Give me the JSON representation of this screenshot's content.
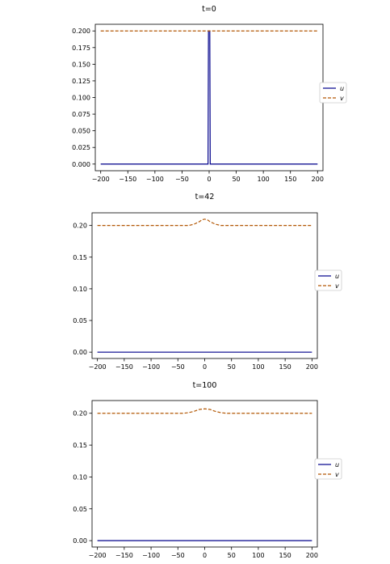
{
  "chart_data": [
    {
      "type": "line",
      "title": "t=0",
      "xlabel": "",
      "ylabel": "",
      "xlim": [
        -210,
        210
      ],
      "ylim": [
        -0.01,
        0.21
      ],
      "xticks": [
        -200,
        -150,
        -100,
        -50,
        0,
        50,
        100,
        150,
        200
      ],
      "yticks": [
        0.0,
        0.025,
        0.05,
        0.075,
        0.1,
        0.125,
        0.15,
        0.175,
        0.2
      ],
      "ytick_labels": [
        "0.000",
        "0.025",
        "0.050",
        "0.075",
        "0.100",
        "0.125",
        "0.150",
        "0.175",
        "0.200"
      ],
      "grid": false,
      "legend_position": "right",
      "series": [
        {
          "name": "u",
          "style": "solid",
          "color": "#00008b",
          "x": [
            -200,
            -2,
            -1.2,
            0,
            1.2,
            2,
            200
          ],
          "y": [
            0,
            0,
            0.2,
            0.2,
            0.2,
            0,
            0
          ]
        },
        {
          "name": "v",
          "style": "dashed",
          "color": "#b35806",
          "x": [
            -200,
            200
          ],
          "y": [
            0.2,
            0.2
          ]
        }
      ]
    },
    {
      "type": "line",
      "title": "t=42",
      "xlabel": "",
      "ylabel": "",
      "xlim": [
        -210,
        210
      ],
      "ylim": [
        -0.01,
        0.22
      ],
      "xticks": [
        -200,
        -150,
        -100,
        -50,
        0,
        50,
        100,
        150,
        200
      ],
      "yticks": [
        0.0,
        0.05,
        0.1,
        0.15,
        0.2
      ],
      "ytick_labels": [
        "0.00",
        "0.05",
        "0.10",
        "0.15",
        "0.20"
      ],
      "grid": false,
      "legend_position": "right",
      "series": [
        {
          "name": "u",
          "style": "solid",
          "color": "#00008b",
          "x": [
            -200,
            200
          ],
          "y": [
            0,
            0
          ]
        },
        {
          "name": "v",
          "style": "dashed",
          "color": "#b35806",
          "x": [
            -200,
            -30,
            -20,
            -10,
            -5,
            0,
            5,
            10,
            20,
            30,
            200
          ],
          "y": [
            0.2,
            0.2,
            0.202,
            0.206,
            0.209,
            0.21,
            0.209,
            0.206,
            0.202,
            0.2,
            0.2
          ]
        }
      ]
    },
    {
      "type": "line",
      "title": "t=100",
      "xlabel": "",
      "ylabel": "",
      "xlim": [
        -210,
        210
      ],
      "ylim": [
        -0.01,
        0.22
      ],
      "xticks": [
        -200,
        -150,
        -100,
        -50,
        0,
        50,
        100,
        150,
        200
      ],
      "yticks": [
        0.0,
        0.05,
        0.1,
        0.15,
        0.2
      ],
      "ytick_labels": [
        "0.00",
        "0.05",
        "0.10",
        "0.15",
        "0.20"
      ],
      "grid": false,
      "legend_position": "right",
      "series": [
        {
          "name": "u",
          "style": "solid",
          "color": "#00008b",
          "x": [
            -200,
            200
          ],
          "y": [
            0,
            0
          ]
        },
        {
          "name": "v",
          "style": "dashed",
          "color": "#b35806",
          "x": [
            -200,
            -40,
            -30,
            -20,
            -10,
            0,
            10,
            20,
            30,
            40,
            200
          ],
          "y": [
            0.2,
            0.2,
            0.201,
            0.203,
            0.206,
            0.207,
            0.206,
            0.203,
            0.201,
            0.2,
            0.2
          ]
        }
      ]
    }
  ]
}
